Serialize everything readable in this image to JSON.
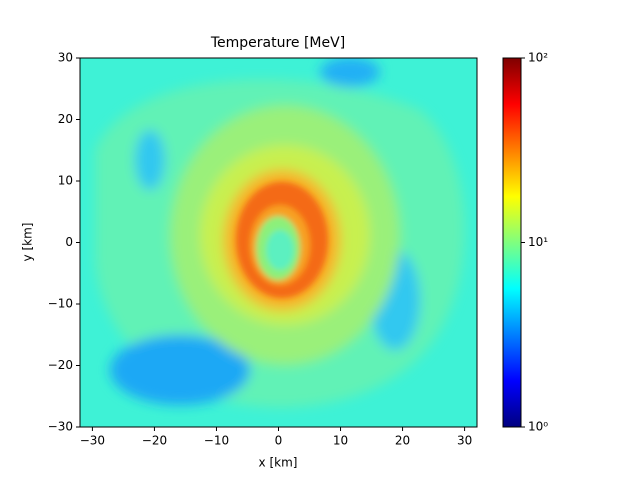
{
  "chart_data": {
    "type": "heatmap",
    "title": "Temperature [MeV]",
    "x_label": "x [km]",
    "y_label": "y [km]",
    "xlim": [
      -32,
      32
    ],
    "ylim": [
      -30,
      30
    ],
    "xticks": [
      {
        "value": -30,
        "label": "−30"
      },
      {
        "value": -20,
        "label": "−20"
      },
      {
        "value": -10,
        "label": "−10"
      },
      0,
      10,
      20,
      30
    ],
    "yticks": [
      {
        "value": -30,
        "label": "−30"
      },
      {
        "value": -20,
        "label": "−20"
      },
      {
        "value": -10,
        "label": "−10"
      },
      0,
      10,
      20,
      30
    ],
    "colormap": "jet",
    "colorbar": {
      "scale": "log",
      "lim": [
        1,
        100
      ],
      "ticks": [
        {
          "value": 1,
          "label": "10⁰"
        },
        {
          "value": 10,
          "label": "10¹"
        },
        {
          "value": 100,
          "label": "10²"
        }
      ]
    }
  }
}
